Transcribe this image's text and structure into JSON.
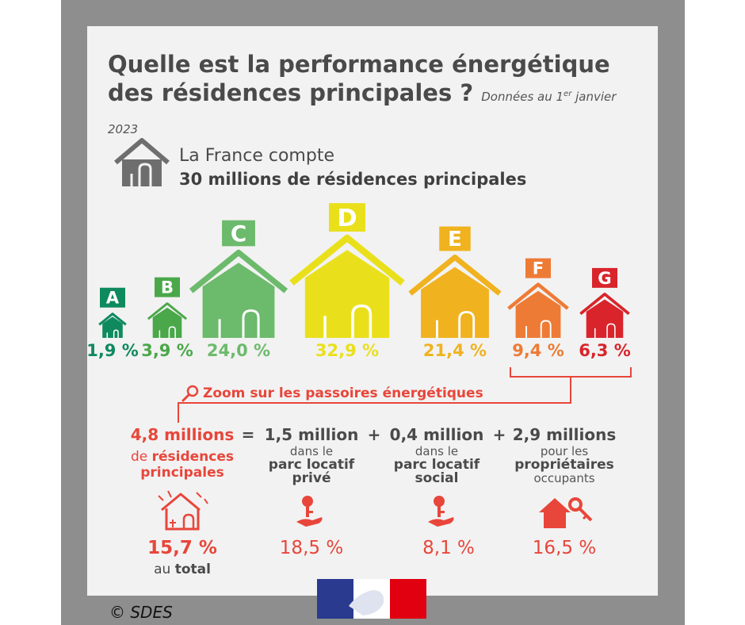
{
  "title_line1": "Quelle est la performance énergétique",
  "title_line2": "des résidences principales ?",
  "subtitle_pre": "Données au 1",
  "subtitle_sup": "er",
  "subtitle_post": " janvier 2023",
  "intro_line1": "La France compte",
  "intro_line2": "30 millions de résidences principales",
  "zoom_label": "Zoom sur les passoires énergétiques",
  "equation": {
    "total": "4,8 millions",
    "equals": "=",
    "plus1": "+",
    "plus2": "+",
    "total_desc_pre": "de ",
    "total_desc_bold1": "résidences",
    "total_desc_bold2": "principales",
    "priv_value": "1,5 million",
    "priv_desc1": "dans le",
    "priv_desc2": "parc locatif",
    "priv_desc3": "privé",
    "soc_value": "0,4 million",
    "soc_desc1": "dans le",
    "soc_desc2": "parc locatif",
    "soc_desc3": "social",
    "own_value": "2,9 millions",
    "own_desc1": "pour les",
    "own_desc2": "propriétaires",
    "own_desc3": "occupants"
  },
  "shares": {
    "total": "15,7 %",
    "total_label_pre": "au ",
    "total_label_bold": "total",
    "priv": "18,5 %",
    "soc": "8,1 %",
    "own": "16,5 %"
  },
  "credit": "© SDES",
  "colors": {
    "A": "#0f8a5f",
    "B": "#4aa84a",
    "C": "#6cba6c",
    "D": "#e9e01b",
    "E": "#f0b21f",
    "F": "#ee7b35",
    "G": "#d9242b",
    "accent": "#e8463a",
    "grey": "#6e6e6e"
  },
  "chart_data": {
    "type": "bar",
    "categories": [
      "A",
      "B",
      "C",
      "D",
      "E",
      "F",
      "G"
    ],
    "values": [
      1.9,
      3.9,
      24.0,
      32.9,
      21.4,
      9.4,
      6.3
    ],
    "value_labels": [
      "1,9 %",
      "3,9 %",
      "24,0 %",
      "32,9 %",
      "21,4 %",
      "9,4 %",
      "6,3 %"
    ],
    "unit": "%"
  }
}
